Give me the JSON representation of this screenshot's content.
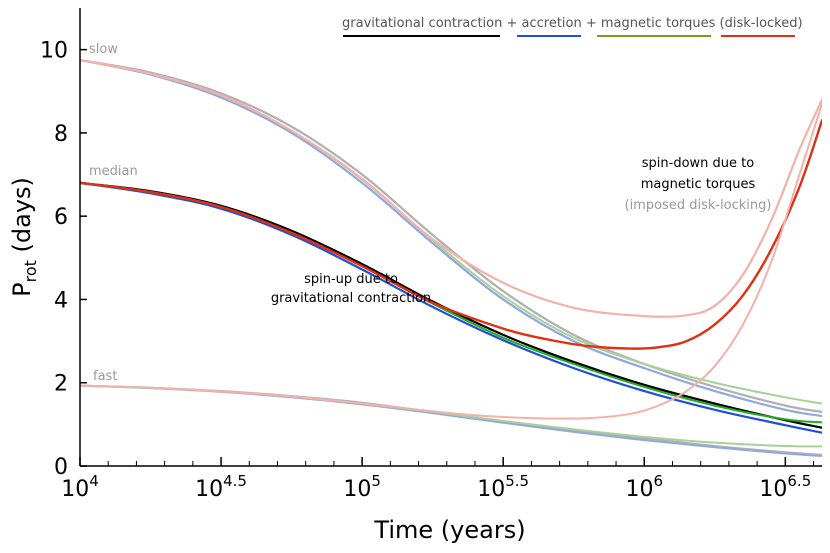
{
  "chart_data": {
    "type": "line",
    "xscale": "log10",
    "xlim_log10": [
      4.0,
      6.63
    ],
    "ylim": [
      0,
      11
    ],
    "xlabel": "Time (years)",
    "ylabel_main": "P",
    "ylabel_sub": "rot",
    "ylabel_tail": " (days)",
    "x_ticks": [
      {
        "value": 4.0,
        "base": "10",
        "exp": "4"
      },
      {
        "value": 4.5,
        "base": "10",
        "exp": "4.5"
      },
      {
        "value": 5.0,
        "base": "10",
        "exp": "5"
      },
      {
        "value": 5.5,
        "base": "10",
        "exp": "5.5"
      },
      {
        "value": 6.0,
        "base": "10",
        "exp": "6"
      },
      {
        "value": 6.5,
        "base": "10",
        "exp": "6.5"
      }
    ],
    "y_ticks": [
      0,
      2,
      4,
      6,
      8,
      10
    ],
    "legend": {
      "text": "gravitational contraction + accretion + magnetic torques (disk-locked)",
      "swatches": [
        {
          "name": "gravitational contraction",
          "color": "#000000"
        },
        {
          "name": "accretion",
          "color": "#1f4fd8"
        },
        {
          "name": "magnetic torques",
          "color": "#7a9a1a"
        },
        {
          "name": "disk-locked",
          "color": "#e03010"
        }
      ]
    },
    "series_labels": {
      "slow": "slow",
      "median": "median",
      "fast": "fast"
    },
    "annotations": {
      "spin_up_line1": "spin-up due to",
      "spin_up_line2": "gravitational contraction",
      "spin_down_line1": "spin-down due to",
      "spin_down_line2": "magnetic torques",
      "spin_down_line3": "(imposed disk-locking)"
    },
    "series": [
      {
        "name": "slow gravitational contraction",
        "group": "slow",
        "color": "#b0b0b0",
        "width": 2.2,
        "x": [
          4.0,
          4.25,
          4.5,
          4.75,
          5.0,
          5.25,
          5.5,
          5.75,
          6.0,
          6.25,
          6.5,
          6.63
        ],
        "y": [
          9.75,
          9.45,
          8.95,
          8.15,
          7.0,
          5.55,
          4.2,
          3.15,
          2.45,
          1.9,
          1.45,
          1.3
        ]
      },
      {
        "name": "slow accretion",
        "group": "slow",
        "color": "#8fa8e0",
        "width": 2.2,
        "x": [
          4.0,
          4.25,
          4.5,
          4.75,
          5.0,
          5.25,
          5.5,
          5.75,
          6.0,
          6.25,
          6.5,
          6.63
        ],
        "y": [
          9.75,
          9.4,
          8.85,
          8.0,
          6.8,
          5.35,
          4.0,
          3.0,
          2.35,
          1.8,
          1.35,
          1.2
        ]
      },
      {
        "name": "slow magnetic torques",
        "group": "slow",
        "color": "#a8d098",
        "width": 2.0,
        "x": [
          4.0,
          4.25,
          4.5,
          4.75,
          5.0,
          5.25,
          5.5,
          5.75,
          6.0,
          6.25,
          6.5,
          6.63
        ],
        "y": [
          9.75,
          9.42,
          8.9,
          8.05,
          6.88,
          5.42,
          4.08,
          3.08,
          2.45,
          2.0,
          1.65,
          1.5
        ]
      },
      {
        "name": "slow disk-locked",
        "group": "slow",
        "color": "#f4b0aa",
        "width": 2.2,
        "x": [
          4.0,
          4.25,
          4.5,
          4.75,
          5.0,
          5.25,
          5.5,
          5.75,
          6.0,
          6.15,
          6.25,
          6.35,
          6.45,
          6.55,
          6.63
        ],
        "y": [
          9.75,
          9.42,
          8.9,
          8.05,
          6.9,
          5.45,
          4.4,
          3.8,
          3.6,
          3.62,
          3.85,
          4.6,
          5.9,
          7.6,
          8.8
        ]
      },
      {
        "name": "median gravitational contraction",
        "group": "median",
        "color": "#000000",
        "width": 2.2,
        "x": [
          4.0,
          4.25,
          4.5,
          4.75,
          5.0,
          5.25,
          5.5,
          5.75,
          6.0,
          6.25,
          6.5,
          6.63
        ],
        "y": [
          6.8,
          6.6,
          6.25,
          5.65,
          4.85,
          3.95,
          3.15,
          2.5,
          1.95,
          1.5,
          1.1,
          0.92
        ]
      },
      {
        "name": "median accretion",
        "group": "median",
        "color": "#1f4fd8",
        "width": 2.2,
        "x": [
          4.0,
          4.25,
          4.5,
          4.75,
          5.0,
          5.25,
          5.5,
          5.75,
          6.0,
          6.25,
          6.5,
          6.63
        ],
        "y": [
          6.8,
          6.55,
          6.18,
          5.55,
          4.72,
          3.82,
          3.02,
          2.35,
          1.8,
          1.35,
          0.98,
          0.8
        ]
      },
      {
        "name": "median magnetic torques",
        "group": "median",
        "color": "#22aa22",
        "width": 2.0,
        "x": [
          4.0,
          4.25,
          4.5,
          4.75,
          5.0,
          5.25,
          5.5,
          5.75,
          6.0,
          6.25,
          6.5,
          6.63
        ],
        "y": [
          6.8,
          6.58,
          6.22,
          5.6,
          4.8,
          3.9,
          3.08,
          2.45,
          1.9,
          1.45,
          1.12,
          1.05
        ]
      },
      {
        "name": "median disk-locked",
        "group": "median",
        "color": "#e03010",
        "width": 2.4,
        "x": [
          4.0,
          4.25,
          4.5,
          4.75,
          5.0,
          5.25,
          5.5,
          5.65,
          5.8,
          5.95,
          6.05,
          6.15,
          6.25,
          6.35,
          6.45,
          6.55,
          6.63
        ],
        "y": [
          6.8,
          6.58,
          6.22,
          5.6,
          4.8,
          3.92,
          3.3,
          3.05,
          2.88,
          2.82,
          2.85,
          3.0,
          3.4,
          4.1,
          5.2,
          6.7,
          8.3
        ]
      },
      {
        "name": "fast gravitational contraction",
        "group": "fast",
        "color": "#b0b0b0",
        "width": 2.0,
        "x": [
          4.0,
          4.25,
          4.5,
          4.75,
          5.0,
          5.25,
          5.5,
          5.75,
          6.0,
          6.25,
          6.5,
          6.63
        ],
        "y": [
          1.93,
          1.88,
          1.8,
          1.68,
          1.52,
          1.3,
          1.08,
          0.86,
          0.66,
          0.48,
          0.33,
          0.27
        ]
      },
      {
        "name": "fast accretion",
        "group": "fast",
        "color": "#8fa8e0",
        "width": 2.0,
        "x": [
          4.0,
          4.25,
          4.5,
          4.75,
          5.0,
          5.25,
          5.5,
          5.75,
          6.0,
          6.25,
          6.5,
          6.63
        ],
        "y": [
          1.93,
          1.87,
          1.78,
          1.65,
          1.48,
          1.27,
          1.04,
          0.82,
          0.62,
          0.45,
          0.3,
          0.24
        ]
      },
      {
        "name": "fast magnetic torques",
        "group": "fast",
        "color": "#a8d098",
        "width": 2.0,
        "x": [
          4.0,
          4.25,
          4.5,
          4.75,
          5.0,
          5.25,
          5.5,
          5.75,
          6.0,
          6.25,
          6.5,
          6.63
        ],
        "y": [
          1.93,
          1.88,
          1.79,
          1.67,
          1.5,
          1.3,
          1.08,
          0.88,
          0.7,
          0.56,
          0.48,
          0.47
        ]
      },
      {
        "name": "fast disk-locked",
        "group": "fast",
        "color": "#f4b0aa",
        "width": 2.0,
        "x": [
          4.0,
          4.25,
          4.5,
          4.75,
          5.0,
          5.2,
          5.4,
          5.6,
          5.8,
          5.95,
          6.05,
          6.15,
          6.25,
          6.35,
          6.45,
          6.55,
          6.63
        ],
        "y": [
          1.93,
          1.88,
          1.79,
          1.67,
          1.5,
          1.35,
          1.22,
          1.15,
          1.15,
          1.25,
          1.45,
          1.8,
          2.4,
          3.4,
          4.9,
          7.0,
          8.7
        ]
      }
    ]
  }
}
